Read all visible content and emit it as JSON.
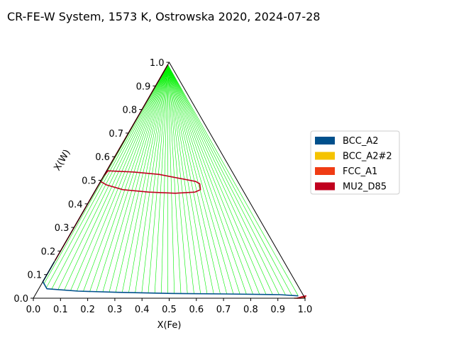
{
  "chart_data": {
    "type": "ternary-phase-diagram",
    "title": "CR-FE-W System, 1573 K, Ostrowska 2020, 2024-07-28",
    "xlabel": "X(Fe)",
    "ylabel": "X(W)",
    "xlim": [
      0.0,
      1.0
    ],
    "ylim": [
      0.0,
      1.0
    ],
    "x_ticks": [
      "0.0",
      "0.1",
      "0.2",
      "0.3",
      "0.4",
      "0.5",
      "0.6",
      "0.7",
      "0.8",
      "0.9",
      "1.0"
    ],
    "y_ticks": [
      "0.0",
      "0.1",
      "0.2",
      "0.3",
      "0.4",
      "0.5",
      "0.6",
      "0.7",
      "0.8",
      "0.9",
      "1.0"
    ],
    "legend_position": "right",
    "legend": [
      {
        "name": "BCC_A2",
        "color": "#00508C"
      },
      {
        "name": "BCC_A2#2",
        "color": "#F5C300"
      },
      {
        "name": "FCC_A1",
        "color": "#F03C14"
      },
      {
        "name": "MU2_D85",
        "color": "#C0001E"
      }
    ],
    "tie_line_color": "#00F000",
    "boundaries": [
      {
        "phase": "BCC_A2",
        "color": "#00508C",
        "points": [
          [
            0.0,
            0.155
          ],
          [
            0.0,
            0.07
          ],
          [
            0.03,
            0.04
          ],
          [
            0.15,
            0.03
          ],
          [
            0.3,
            0.025
          ],
          [
            0.5,
            0.02
          ],
          [
            0.7,
            0.018
          ],
          [
            0.9,
            0.015
          ],
          [
            0.97,
            0.01
          ]
        ]
      },
      {
        "phase": "MU2_D85",
        "color": "#C0001E",
        "points": [
          [
            0.0,
            0.16
          ],
          [
            0.0,
            0.3
          ],
          [
            0.0,
            0.45
          ],
          [
            0.0,
            0.6
          ],
          [
            0.0,
            0.75
          ],
          [
            0.0,
            0.9
          ],
          [
            0.0,
            0.99
          ]
        ]
      },
      {
        "phase": "MU2_D85",
        "color": "#C0001E",
        "points": [
          [
            0.0,
            0.52
          ],
          [
            0.005,
            0.54
          ],
          [
            0.1,
            0.535
          ],
          [
            0.2,
            0.525
          ],
          [
            0.3,
            0.505
          ],
          [
            0.35,
            0.495
          ],
          [
            0.37,
            0.485
          ],
          [
            0.385,
            0.46
          ],
          [
            0.37,
            0.45
          ],
          [
            0.3,
            0.445
          ],
          [
            0.2,
            0.45
          ],
          [
            0.1,
            0.46
          ],
          [
            0.03,
            0.48
          ],
          [
            0.0,
            0.495
          ]
        ]
      },
      {
        "phase": "FCC_A1",
        "color": "#F03C14",
        "points": [
          [
            0.96,
            0.0
          ],
          [
            0.985,
            0.0
          ],
          [
            1.0,
            0.005
          ]
        ]
      },
      {
        "phase": "MU2_D85",
        "color": "#C0001E",
        "points": [
          [
            0.97,
            0.0
          ],
          [
            0.99,
            0.008
          ],
          [
            1.0,
            0.01
          ]
        ]
      }
    ],
    "tie_line_groups": [
      {
        "from": [
          [
            0.0,
            0.07
          ],
          [
            0.97,
            0.01
          ]
        ],
        "to": [
          [
            0.0,
            0.99
          ],
          [
            0.0,
            0.99
          ]
        ],
        "count": 45,
        "x_power": 1.0
      },
      {
        "from": [
          [
            0.0,
            0.155
          ],
          [
            0.0,
            0.5
          ]
        ],
        "to": [
          [
            0.0,
            0.16
          ],
          [
            0.0,
            0.52
          ]
        ],
        "count": 10,
        "x_power": 1.0
      }
    ]
  }
}
